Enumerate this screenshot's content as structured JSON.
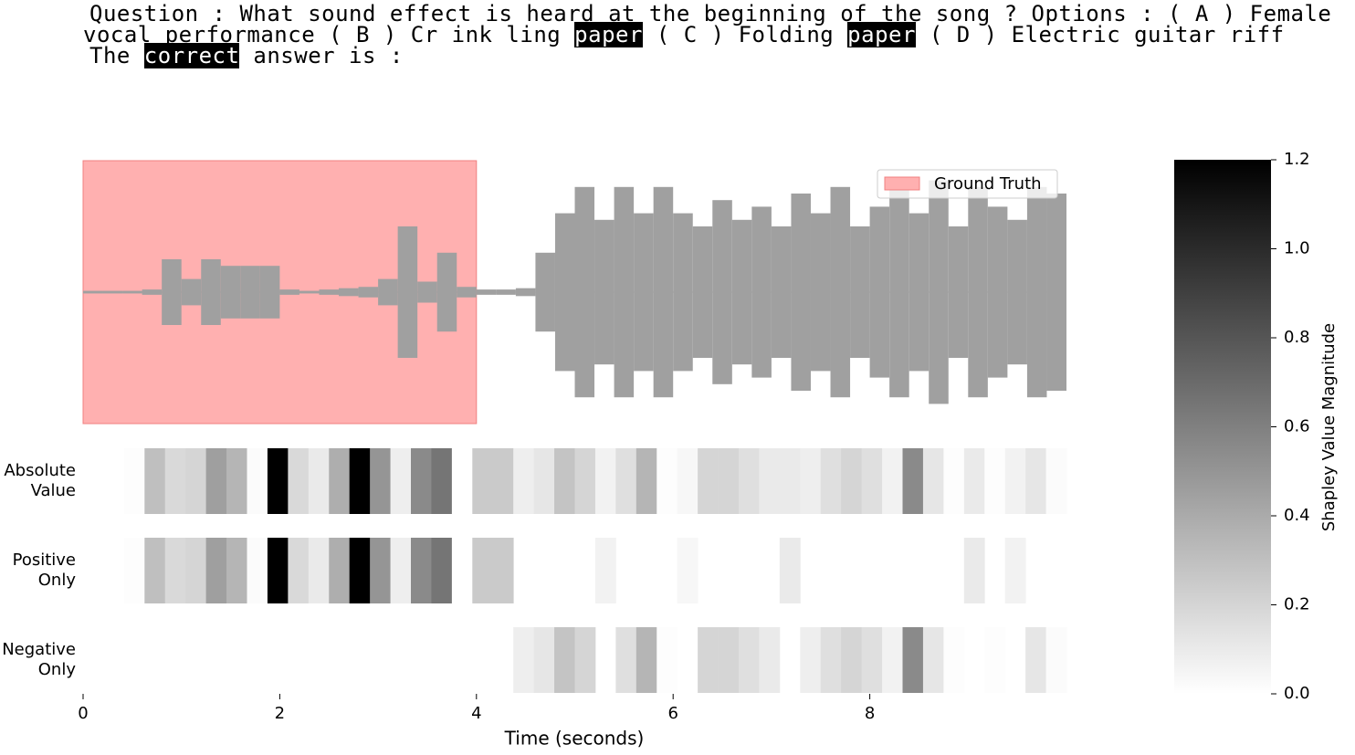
{
  "chart_data": {
    "type": "waveform-heatmap",
    "title_lines": [
      [
        {
          "text": "Question : What sound effect is heard at the beginning of the song ? Options : ( A ) Female"
        }
      ],
      [
        {
          "text": "vocal performance ( B ) Cr ink ling "
        },
        {
          "text": "paper",
          "highlight": true
        },
        {
          "text": " ( C ) Folding "
        },
        {
          "text": "paper",
          "highlight": true
        },
        {
          "text": " ( D ) Electric guitar riff"
        }
      ],
      [
        {
          "text": "The "
        },
        {
          "text": "correct",
          "highlight": true
        },
        {
          "text": " answer is :"
        }
      ]
    ],
    "xlabel": "Time (seconds)",
    "xlim": [
      0,
      10
    ],
    "xticks": [
      0,
      2,
      4,
      6,
      8
    ],
    "waveform": {
      "color": "#a0a0a0",
      "ylim": [
        -1,
        1
      ],
      "x": [
        0,
        0.2,
        0.4,
        0.6,
        0.8,
        1.0,
        1.2,
        1.4,
        1.6,
        1.8,
        2.0,
        2.2,
        2.4,
        2.6,
        2.8,
        3.0,
        3.2,
        3.4,
        3.6,
        3.8,
        4.0,
        4.2,
        4.4,
        4.6,
        4.8,
        5.0,
        5.2,
        5.4,
        5.6,
        5.8,
        6.0,
        6.2,
        6.4,
        6.6,
        6.8,
        7.0,
        7.2,
        7.4,
        7.6,
        7.8,
        8.0,
        8.2,
        8.4,
        8.6,
        8.8,
        9.0,
        9.2,
        9.4,
        9.6,
        9.8
      ],
      "values": [
        0.01,
        0.01,
        0.01,
        0.02,
        0.25,
        0.1,
        0.25,
        0.2,
        0.2,
        0.2,
        0.02,
        0.01,
        0.02,
        0.03,
        0.04,
        0.1,
        0.5,
        0.08,
        0.3,
        0.04,
        0.02,
        0.02,
        0.03,
        0.3,
        0.6,
        0.8,
        0.55,
        0.8,
        0.6,
        0.8,
        0.6,
        0.5,
        0.7,
        0.55,
        0.65,
        0.5,
        0.75,
        0.6,
        0.8,
        0.5,
        0.65,
        0.8,
        0.6,
        0.85,
        0.5,
        0.8,
        0.65,
        0.55,
        0.8,
        0.75
      ]
    },
    "ground_truth": {
      "label": "Ground Truth",
      "start": 0,
      "end": 4,
      "color": "#ffb0b0",
      "edge_color": "#f08080"
    },
    "legend": "upper right",
    "colormap": "Greys",
    "clim": [
      0,
      1.2
    ],
    "colorbar_label": "Shapley Value Magnitude",
    "colorbar_ticks": [
      {
        "value": 0,
        "label": "0.0"
      },
      0.2,
      0.4,
      0.6,
      0.8,
      {
        "value": 1,
        "label": "1.0"
      },
      1.2
    ],
    "series": [
      {
        "name": "Absolute Value",
        "values": [
          0,
          0,
          0.01,
          0.3,
          0.18,
          0.2,
          0.45,
          0.35,
          0.02,
          1.2,
          0.18,
          0.1,
          0.38,
          1.2,
          0.5,
          0.08,
          0.55,
          0.65,
          0,
          0.25,
          0.25,
          0.08,
          0.12,
          0.28,
          0.2,
          0.06,
          0.15,
          0.35,
          0.01,
          0.04,
          0.2,
          0.2,
          0.15,
          0.1,
          0.1,
          0.08,
          0.15,
          0.2,
          0.15,
          0.06,
          0.55,
          0.12,
          0.01,
          0.1,
          0.01,
          0.06,
          0.12,
          0.02
        ]
      },
      {
        "name": "Positive Only",
        "values": [
          0,
          0,
          0.01,
          0.3,
          0.18,
          0.2,
          0.45,
          0.35,
          0.02,
          1.2,
          0.18,
          0.1,
          0.38,
          1.2,
          0.5,
          0.08,
          0.55,
          0.65,
          0,
          0.25,
          0.25,
          null,
          null,
          null,
          null,
          0.06,
          null,
          null,
          null,
          0.04,
          null,
          null,
          null,
          null,
          0.1,
          null,
          null,
          null,
          null,
          null,
          null,
          null,
          null,
          0.1,
          null,
          0.06,
          null,
          null
        ]
      },
      {
        "name": "Negative Only",
        "values": [
          null,
          null,
          null,
          null,
          null,
          null,
          null,
          null,
          null,
          null,
          null,
          null,
          null,
          null,
          null,
          null,
          null,
          null,
          null,
          null,
          null,
          0.08,
          0.12,
          0.28,
          0.2,
          null,
          0.15,
          0.35,
          0.01,
          null,
          0.2,
          0.2,
          0.15,
          0.1,
          null,
          0.08,
          0.15,
          0.2,
          0.15,
          0.06,
          0.55,
          0.12,
          0.01,
          null,
          0.01,
          null,
          0.12,
          0.02
        ]
      }
    ]
  }
}
